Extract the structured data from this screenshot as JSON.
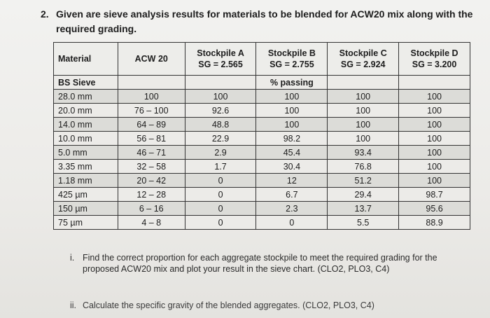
{
  "question": {
    "number": "2.",
    "text": "Given are sieve analysis results for materials to be blended for ACW20 mix along with the required grading."
  },
  "table": {
    "headers": [
      {
        "line1": "Material",
        "line2": ""
      },
      {
        "line1": "ACW 20",
        "line2": ""
      },
      {
        "line1": "Stockpile A",
        "line2": "SG = 2.565"
      },
      {
        "line1": "Stockpile B",
        "line2": "SG = 2.755"
      },
      {
        "line1": "Stockpile C",
        "line2": "SG = 2.924"
      },
      {
        "line1": "Stockpile D",
        "line2": "SG = 3.200"
      }
    ],
    "subheader": {
      "sieve": "BS Sieve",
      "passing": "% passing"
    },
    "rows": [
      {
        "sieve": "28.0 mm",
        "acw": "100",
        "a": "100",
        "b": "100",
        "c": "100",
        "d": "100"
      },
      {
        "sieve": "20.0 mm",
        "acw": "76 – 100",
        "a": "92.6",
        "b": "100",
        "c": "100",
        "d": "100"
      },
      {
        "sieve": "14.0 mm",
        "acw": "64 – 89",
        "a": "48.8",
        "b": "100",
        "c": "100",
        "d": "100"
      },
      {
        "sieve": "10.0 mm",
        "acw": "56 – 81",
        "a": "22.9",
        "b": "98.2",
        "c": "100",
        "d": "100"
      },
      {
        "sieve": "5.0 mm",
        "acw": "46 – 71",
        "a": "2.9",
        "b": "45.4",
        "c": "93.4",
        "d": "100"
      },
      {
        "sieve": "3.35 mm",
        "acw": "32 – 58",
        "a": "1.7",
        "b": "30.4",
        "c": "76.8",
        "d": "100"
      },
      {
        "sieve": "1.18 mm",
        "acw": "20 – 42",
        "a": "0",
        "b": "12",
        "c": "51.2",
        "d": "100"
      },
      {
        "sieve": "425 µm",
        "acw": "12 – 28",
        "a": "0",
        "b": "6.7",
        "c": "29.4",
        "d": "98.7"
      },
      {
        "sieve": "150 µm",
        "acw": "6 – 16",
        "a": "0",
        "b": "2.3",
        "c": "13.7",
        "d": "95.6"
      },
      {
        "sieve": "75 µm",
        "acw": "4 – 8",
        "a": "0",
        "b": "0",
        "c": "5.5",
        "d": "88.9"
      }
    ]
  },
  "instructions": [
    {
      "marker": "i.",
      "text": "Find the correct proportion for each aggregate stockpile to meet the required grading for the proposed ACW20 mix and plot your result in the sieve chart. (CLO2, PLO3, C4)"
    },
    {
      "marker": "ii.",
      "text": "Calculate the specific gravity of the blended aggregates. (CLO2, PLO3, C4)"
    }
  ]
}
